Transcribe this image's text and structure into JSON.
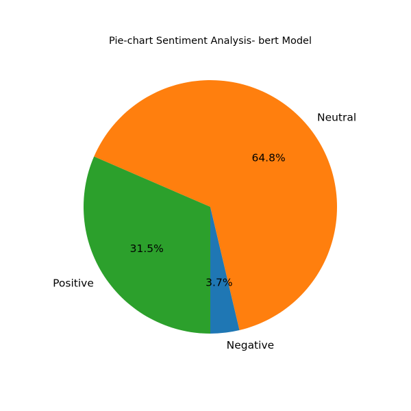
{
  "chart_data": {
    "type": "pie",
    "title": "Pie-chart Sentiment Analysis- bert Model",
    "start_angle_deg": 270,
    "direction": "counterclockwise",
    "slices": [
      {
        "label": "Negative",
        "value": 3.7,
        "pct_label": "3.7%",
        "color": "#1f77b4"
      },
      {
        "label": "Neutral",
        "value": 64.8,
        "pct_label": "64.8%",
        "color": "#ff7f0e"
      },
      {
        "label": "Positive",
        "value": 31.5,
        "pct_label": "31.5%",
        "color": "#2ca02c"
      }
    ]
  }
}
